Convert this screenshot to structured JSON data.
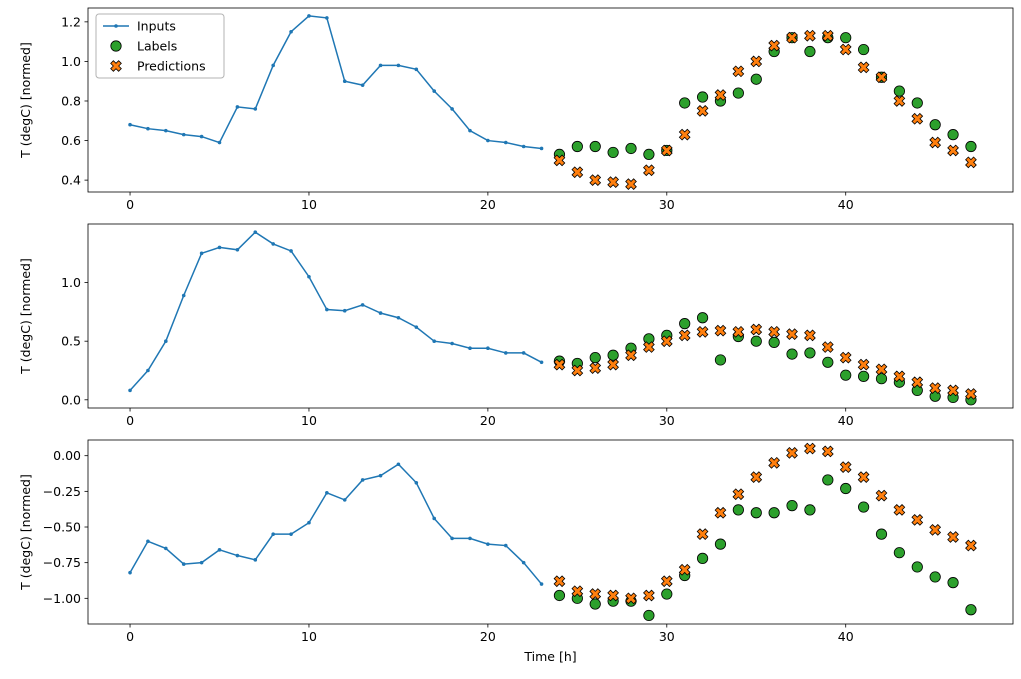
{
  "figure": {
    "xlabel": "Time [h]",
    "ylabel": "T (degC) [normed]",
    "colors": {
      "inputs": "#1f77b4",
      "labels": "#2ca02c",
      "predictions": "#ff7f0e",
      "marker_edge": "#000000",
      "spine": "#000000",
      "legend_border": "#b3b3b3"
    },
    "legend": {
      "position": "upper left",
      "subplot": 1,
      "entries": [
        {
          "label": "Inputs",
          "marker": "line-dot"
        },
        {
          "label": "Labels",
          "marker": "circle"
        },
        {
          "label": "Predictions",
          "marker": "x-filled"
        }
      ]
    }
  },
  "chart_data": [
    {
      "type": "line",
      "title": "",
      "xlabel": "",
      "ylabel": "T (degC) [normed]",
      "xlim": [
        -2.35,
        49.35
      ],
      "ylim": [
        0.34,
        1.27
      ],
      "xtick_values": [
        0,
        10,
        20,
        30,
        40
      ],
      "xtick_labels": [
        "0",
        "10",
        "20",
        "30",
        "40"
      ],
      "ytick_values": [
        0.4,
        0.6,
        0.8,
        1.0,
        1.2
      ],
      "ytick_labels": [
        "0.4",
        "0.6",
        "0.8",
        "1.0",
        "1.2"
      ],
      "series": [
        {
          "name": "Inputs",
          "type": "line",
          "x": [
            0,
            1,
            2,
            3,
            4,
            5,
            6,
            7,
            8,
            9,
            10,
            11,
            12,
            13,
            14,
            15,
            16,
            17,
            18,
            19,
            20,
            21,
            22,
            23
          ],
          "y": [
            0.68,
            0.66,
            0.65,
            0.63,
            0.62,
            0.59,
            0.77,
            0.76,
            0.98,
            1.15,
            1.23,
            1.22,
            0.9,
            0.88,
            0.98,
            0.98,
            0.96,
            0.85,
            0.76,
            0.65,
            0.6,
            0.59,
            0.57,
            0.56
          ]
        },
        {
          "name": "Labels",
          "type": "scatter",
          "x": [
            24,
            25,
            26,
            27,
            28,
            29,
            30,
            31,
            32,
            33,
            34,
            35,
            36,
            37,
            38,
            39,
            40,
            41,
            42,
            43,
            44,
            45,
            46,
            47
          ],
          "y": [
            0.53,
            0.57,
            0.57,
            0.54,
            0.56,
            0.53,
            0.55,
            0.79,
            0.82,
            0.8,
            0.84,
            0.91,
            1.05,
            1.12,
            1.05,
            1.12,
            1.12,
            1.06,
            0.92,
            0.85,
            0.79,
            0.68,
            0.63,
            0.57
          ]
        },
        {
          "name": "Predictions",
          "type": "scatter",
          "x": [
            24,
            25,
            26,
            27,
            28,
            29,
            30,
            31,
            32,
            33,
            34,
            35,
            36,
            37,
            38,
            39,
            40,
            41,
            42,
            43,
            44,
            45,
            46,
            47
          ],
          "y": [
            0.5,
            0.44,
            0.4,
            0.39,
            0.38,
            0.45,
            0.55,
            0.63,
            0.75,
            0.83,
            0.95,
            1.0,
            1.08,
            1.12,
            1.13,
            1.13,
            1.06,
            0.97,
            0.92,
            0.8,
            0.71,
            0.59,
            0.55,
            0.49
          ]
        }
      ]
    },
    {
      "type": "line",
      "title": "",
      "xlabel": "",
      "ylabel": "T (degC) [normed]",
      "xlim": [
        -2.35,
        49.35
      ],
      "ylim": [
        -0.07,
        1.5
      ],
      "xtick_values": [
        0,
        10,
        20,
        30,
        40
      ],
      "xtick_labels": [
        "0",
        "10",
        "20",
        "30",
        "40"
      ],
      "ytick_values": [
        0.0,
        0.5,
        1.0
      ],
      "ytick_labels": [
        "0.0",
        "0.5",
        "1.0"
      ],
      "series": [
        {
          "name": "Inputs",
          "type": "line",
          "x": [
            0,
            1,
            2,
            3,
            4,
            5,
            6,
            7,
            8,
            9,
            10,
            11,
            12,
            13,
            14,
            15,
            16,
            17,
            18,
            19,
            20,
            21,
            22,
            23
          ],
          "y": [
            0.08,
            0.25,
            0.5,
            0.89,
            1.25,
            1.3,
            1.28,
            1.43,
            1.33,
            1.27,
            1.05,
            0.77,
            0.76,
            0.81,
            0.74,
            0.7,
            0.62,
            0.5,
            0.48,
            0.44,
            0.44,
            0.4,
            0.4,
            0.32
          ]
        },
        {
          "name": "Labels",
          "type": "scatter",
          "x": [
            24,
            25,
            26,
            27,
            28,
            29,
            30,
            31,
            32,
            33,
            34,
            35,
            36,
            37,
            38,
            39,
            40,
            41,
            42,
            43,
            44,
            45,
            46,
            47
          ],
          "y": [
            0.33,
            0.31,
            0.36,
            0.38,
            0.44,
            0.52,
            0.55,
            0.65,
            0.7,
            0.34,
            0.54,
            0.5,
            0.49,
            0.39,
            0.4,
            0.32,
            0.21,
            0.2,
            0.18,
            0.15,
            0.08,
            0.03,
            0.02,
            0.0
          ]
        },
        {
          "name": "Predictions",
          "type": "scatter",
          "x": [
            24,
            25,
            26,
            27,
            28,
            29,
            30,
            31,
            32,
            33,
            34,
            35,
            36,
            37,
            38,
            39,
            40,
            41,
            42,
            43,
            44,
            45,
            46,
            47
          ],
          "y": [
            0.3,
            0.25,
            0.27,
            0.3,
            0.38,
            0.45,
            0.5,
            0.55,
            0.58,
            0.59,
            0.58,
            0.6,
            0.58,
            0.56,
            0.55,
            0.45,
            0.36,
            0.3,
            0.26,
            0.2,
            0.15,
            0.1,
            0.08,
            0.05
          ]
        }
      ]
    },
    {
      "type": "line",
      "title": "",
      "xlabel": "Time [h]",
      "ylabel": "T (degC) [normed]",
      "xlim": [
        -2.35,
        49.35
      ],
      "ylim": [
        -1.18,
        0.11
      ],
      "xtick_values": [
        0,
        10,
        20,
        30,
        40
      ],
      "xtick_labels": [
        "0",
        "10",
        "20",
        "30",
        "40"
      ],
      "ytick_values": [
        0.0,
        -0.25,
        -0.5,
        -0.75,
        -1.0
      ],
      "ytick_labels": [
        "0.00",
        "−0.25",
        "−0.50",
        "−0.75",
        "−1.00"
      ],
      "series": [
        {
          "name": "Inputs",
          "type": "line",
          "x": [
            0,
            1,
            2,
            3,
            4,
            5,
            6,
            7,
            8,
            9,
            10,
            11,
            12,
            13,
            14,
            15,
            16,
            17,
            18,
            19,
            20,
            21,
            22,
            23
          ],
          "y": [
            -0.82,
            -0.6,
            -0.65,
            -0.76,
            -0.75,
            -0.66,
            -0.7,
            -0.73,
            -0.55,
            -0.55,
            -0.47,
            -0.26,
            -0.31,
            -0.17,
            -0.14,
            -0.06,
            -0.19,
            -0.44,
            -0.58,
            -0.58,
            -0.62,
            -0.63,
            -0.75,
            -0.9
          ]
        },
        {
          "name": "Labels",
          "type": "scatter",
          "x": [
            24,
            25,
            26,
            27,
            28,
            29,
            30,
            31,
            32,
            33,
            34,
            35,
            36,
            37,
            38,
            39,
            40,
            41,
            42,
            43,
            44,
            45,
            46,
            47
          ],
          "y": [
            -0.98,
            -1.0,
            -1.04,
            -1.02,
            -1.02,
            -1.12,
            -0.97,
            -0.84,
            -0.72,
            -0.62,
            -0.38,
            -0.4,
            -0.4,
            -0.35,
            -0.38,
            -0.17,
            -0.23,
            -0.36,
            -0.55,
            -0.68,
            -0.78,
            -0.85,
            -0.89,
            -1.08
          ]
        },
        {
          "name": "Predictions",
          "type": "scatter",
          "x": [
            24,
            25,
            26,
            27,
            28,
            29,
            30,
            31,
            32,
            33,
            34,
            35,
            36,
            37,
            38,
            39,
            40,
            41,
            42,
            43,
            44,
            45,
            46,
            47
          ],
          "y": [
            -0.88,
            -0.95,
            -0.97,
            -0.98,
            -1.0,
            -0.98,
            -0.88,
            -0.8,
            -0.55,
            -0.4,
            -0.27,
            -0.15,
            -0.05,
            0.02,
            0.05,
            0.03,
            -0.08,
            -0.15,
            -0.28,
            -0.38,
            -0.45,
            -0.52,
            -0.57,
            -0.63
          ]
        }
      ]
    }
  ]
}
